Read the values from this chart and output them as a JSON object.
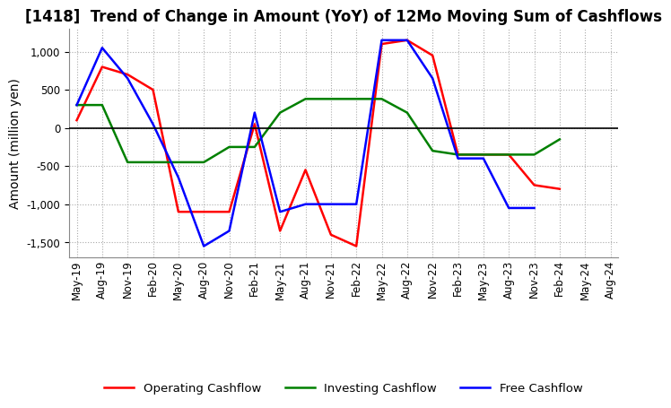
{
  "title": "[1418]  Trend of Change in Amount (YoY) of 12Mo Moving Sum of Cashflows",
  "ylabel": "Amount (million yen)",
  "ylim": [
    -1700,
    1300
  ],
  "yticks": [
    -1500,
    -1000,
    -500,
    0,
    500,
    1000
  ],
  "x_labels": [
    "May-19",
    "Aug-19",
    "Nov-19",
    "Feb-20",
    "May-20",
    "Aug-20",
    "Nov-20",
    "Feb-21",
    "May-21",
    "Aug-21",
    "Nov-21",
    "Feb-22",
    "May-22",
    "Aug-22",
    "Nov-22",
    "Feb-23",
    "May-23",
    "Aug-23",
    "Nov-23",
    "Feb-24",
    "May-24",
    "Aug-24"
  ],
  "operating": [
    100,
    800,
    700,
    500,
    -1100,
    -1100,
    -1100,
    50,
    -1350,
    -550,
    -1400,
    -1550,
    1100,
    1150,
    950,
    -350,
    -350,
    -350,
    -750,
    -800,
    null,
    null
  ],
  "investing": [
    300,
    300,
    -450,
    -450,
    -450,
    -450,
    -250,
    -250,
    200,
    380,
    380,
    380,
    380,
    200,
    -300,
    -350,
    -350,
    -350,
    -350,
    -150,
    null,
    null
  ],
  "free": [
    300,
    1050,
    650,
    50,
    -650,
    -1550,
    -1350,
    200,
    -1100,
    -1000,
    -1000,
    -1000,
    1150,
    1150,
    650,
    -400,
    -400,
    -1050,
    -1050,
    null,
    null,
    null
  ],
  "operating_color": "#ff0000",
  "investing_color": "#008000",
  "free_color": "#0000ff",
  "background_color": "#ffffff",
  "grid_color": "#aaaaaa",
  "title_fontsize": 12,
  "tick_fontsize": 8.5,
  "label_fontsize": 10
}
